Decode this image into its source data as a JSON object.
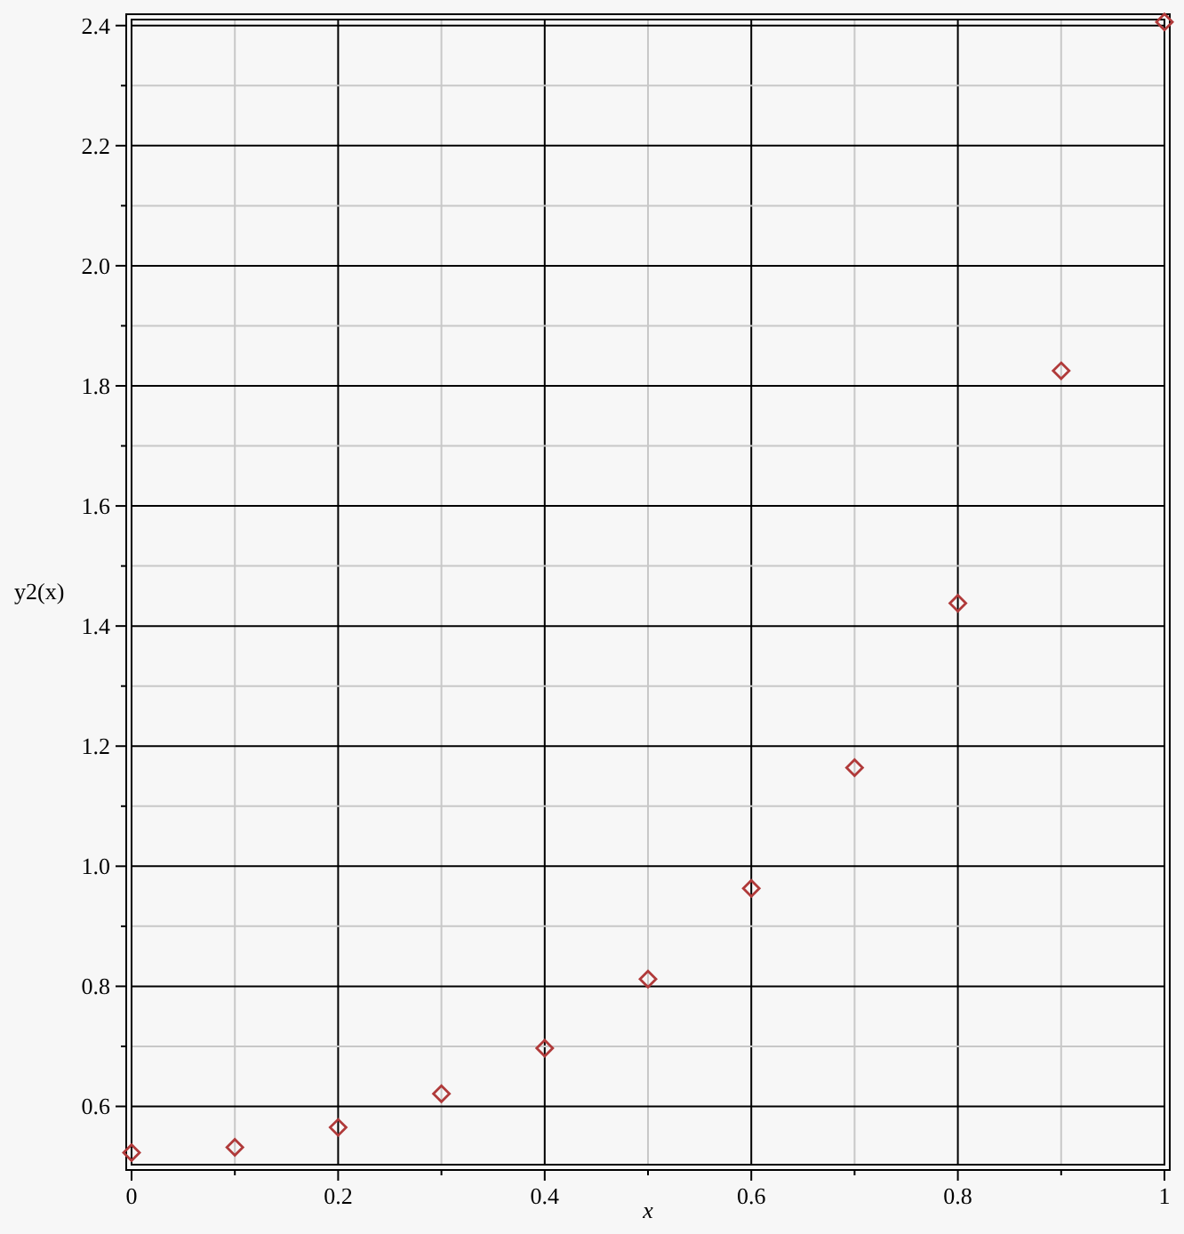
{
  "chart_data": {
    "type": "scatter",
    "xlabel": "x",
    "ylabel": "y2(x)",
    "marker": "diamond",
    "grid": true,
    "x": [
      0,
      0.1,
      0.2,
      0.3,
      0.4,
      0.5,
      0.6,
      0.7,
      0.8,
      0.9,
      1
    ],
    "series": [
      {
        "color": "#b03a3a",
        "values": [
          0.523,
          0.532,
          0.565,
          0.621,
          0.697,
          0.812,
          0.963,
          1.164,
          1.438,
          1.825,
          2.406
        ]
      }
    ],
    "xlim": [
      0,
      1
    ],
    "ylim": [
      0.503,
      2.41
    ],
    "xticks": [
      0,
      {
        "value": 0.1,
        "label": null
      },
      {
        "value": 0.2,
        "label": "0.2"
      },
      {
        "value": 0.3,
        "label": null
      },
      {
        "value": 0.4,
        "label": "0.4"
      },
      {
        "value": 0.5,
        "label": null
      },
      {
        "value": 0.6,
        "label": "0.6"
      },
      {
        "value": 0.7,
        "label": null
      },
      {
        "value": 0.8,
        "label": "0.8"
      },
      {
        "value": 0.9,
        "label": null
      },
      1
    ],
    "yticks": [
      {
        "value": 0.6,
        "label": "0.6"
      },
      {
        "value": 0.7,
        "label": null
      },
      {
        "value": 0.8,
        "label": "0.8"
      },
      {
        "value": 0.9,
        "label": null
      },
      {
        "value": 1,
        "label": "1.0"
      },
      {
        "value": 1.1,
        "label": null
      },
      {
        "value": 1.2,
        "label": "1.2"
      },
      {
        "value": 1.3,
        "label": null
      },
      {
        "value": 1.4,
        "label": "1.4"
      },
      {
        "value": 1.5,
        "label": null
      },
      {
        "value": 1.6,
        "label": "1.6"
      },
      {
        "value": 1.7,
        "label": null
      },
      {
        "value": 1.8,
        "label": "1.8"
      },
      {
        "value": 1.9,
        "label": null
      },
      {
        "value": 2,
        "label": "2.0"
      },
      {
        "value": 2.1,
        "label": null
      },
      {
        "value": 2.2,
        "label": "2.2"
      },
      {
        "value": 2.3,
        "label": null
      },
      {
        "value": 2.4,
        "label": "2.4"
      }
    ]
  }
}
